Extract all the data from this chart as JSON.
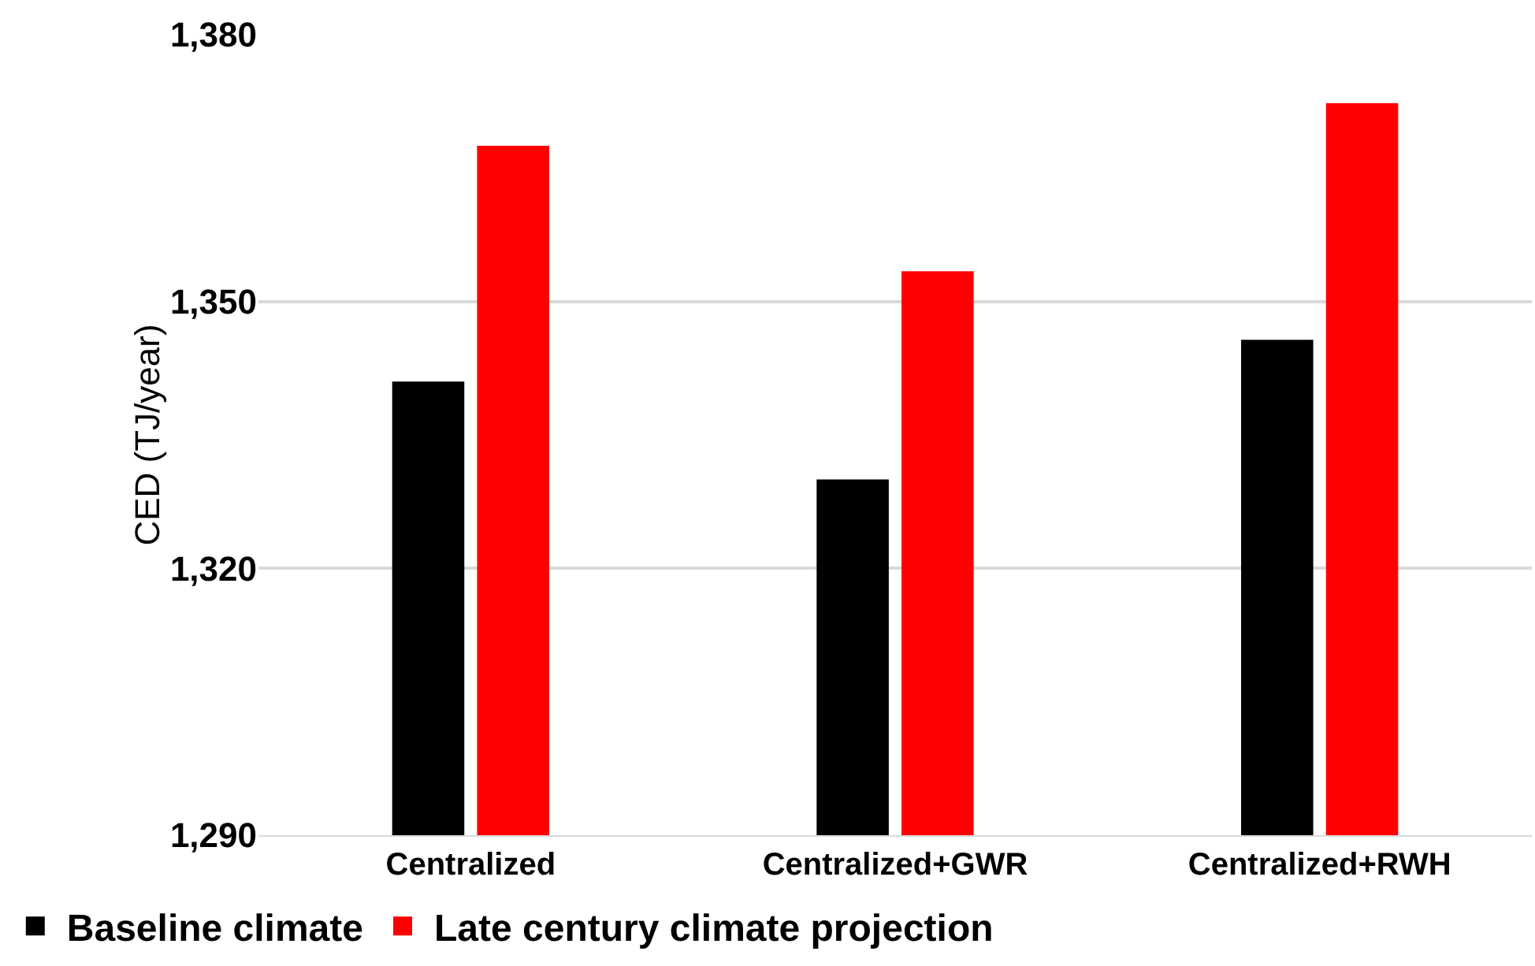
{
  "chart_data": {
    "type": "bar",
    "ylabel": "CED (TJ/year)",
    "categories": [
      "Centralized",
      "Centralized+GWR",
      "Centralized+RWH"
    ],
    "series": [
      {
        "name": "Baseline climate",
        "color": "#000000",
        "values": [
          1341,
          1330,
          1345.7
        ]
      },
      {
        "name": "Late century climate projection",
        "color": "#ff0000",
        "values": [
          1367.5,
          1353.4,
          1372.3
        ]
      }
    ],
    "ylim": [
      1290,
      1380
    ],
    "yticks": [
      {
        "value": 1290,
        "label": "1,290"
      },
      {
        "value": 1320,
        "label": "1,320"
      },
      {
        "value": 1350,
        "label": "1,350"
      },
      {
        "value": 1380,
        "label": "1,380"
      }
    ],
    "grid": "y",
    "legend": "bottom left"
  }
}
